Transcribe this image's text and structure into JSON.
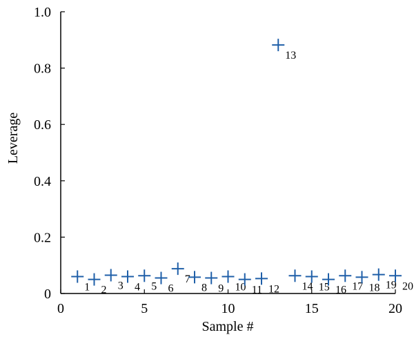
{
  "chart_data": {
    "type": "scatter",
    "title": "",
    "xlabel": "Sample #",
    "ylabel": "Leverage",
    "xlim": [
      0,
      20
    ],
    "ylim": [
      0,
      1.0
    ],
    "grid": false,
    "legend": "none",
    "marker": "plus",
    "marker_color": "#1f5fa8",
    "x_ticks": [
      "0",
      "5",
      "10",
      "15",
      "20"
    ],
    "x_tick_values": [
      0,
      5,
      10,
      15,
      20
    ],
    "y_ticks": [
      "0",
      "0.2",
      "0.4",
      "0.6",
      "0.8",
      "1.0"
    ],
    "y_tick_values": [
      0,
      0.2,
      0.4,
      0.6,
      0.8,
      1.0
    ],
    "points": [
      {
        "x": 1,
        "y": 0.06,
        "label": "1"
      },
      {
        "x": 2,
        "y": 0.05,
        "label": "2"
      },
      {
        "x": 3,
        "y": 0.065,
        "label": "3"
      },
      {
        "x": 4,
        "y": 0.06,
        "label": "4"
      },
      {
        "x": 5,
        "y": 0.063,
        "label": "5"
      },
      {
        "x": 6,
        "y": 0.055,
        "label": "6"
      },
      {
        "x": 7,
        "y": 0.088,
        "label": "7"
      },
      {
        "x": 8,
        "y": 0.058,
        "label": "8"
      },
      {
        "x": 9,
        "y": 0.055,
        "label": "9"
      },
      {
        "x": 10,
        "y": 0.06,
        "label": "10"
      },
      {
        "x": 11,
        "y": 0.05,
        "label": "11"
      },
      {
        "x": 12,
        "y": 0.053,
        "label": "12"
      },
      {
        "x": 13,
        "y": 0.882,
        "label": "13"
      },
      {
        "x": 14,
        "y": 0.063,
        "label": "14"
      },
      {
        "x": 15,
        "y": 0.06,
        "label": "15"
      },
      {
        "x": 16,
        "y": 0.05,
        "label": "16"
      },
      {
        "x": 17,
        "y": 0.063,
        "label": "17"
      },
      {
        "x": 18,
        "y": 0.058,
        "label": "18"
      },
      {
        "x": 19,
        "y": 0.067,
        "label": "19"
      },
      {
        "x": 20,
        "y": 0.063,
        "label": "20"
      }
    ]
  }
}
